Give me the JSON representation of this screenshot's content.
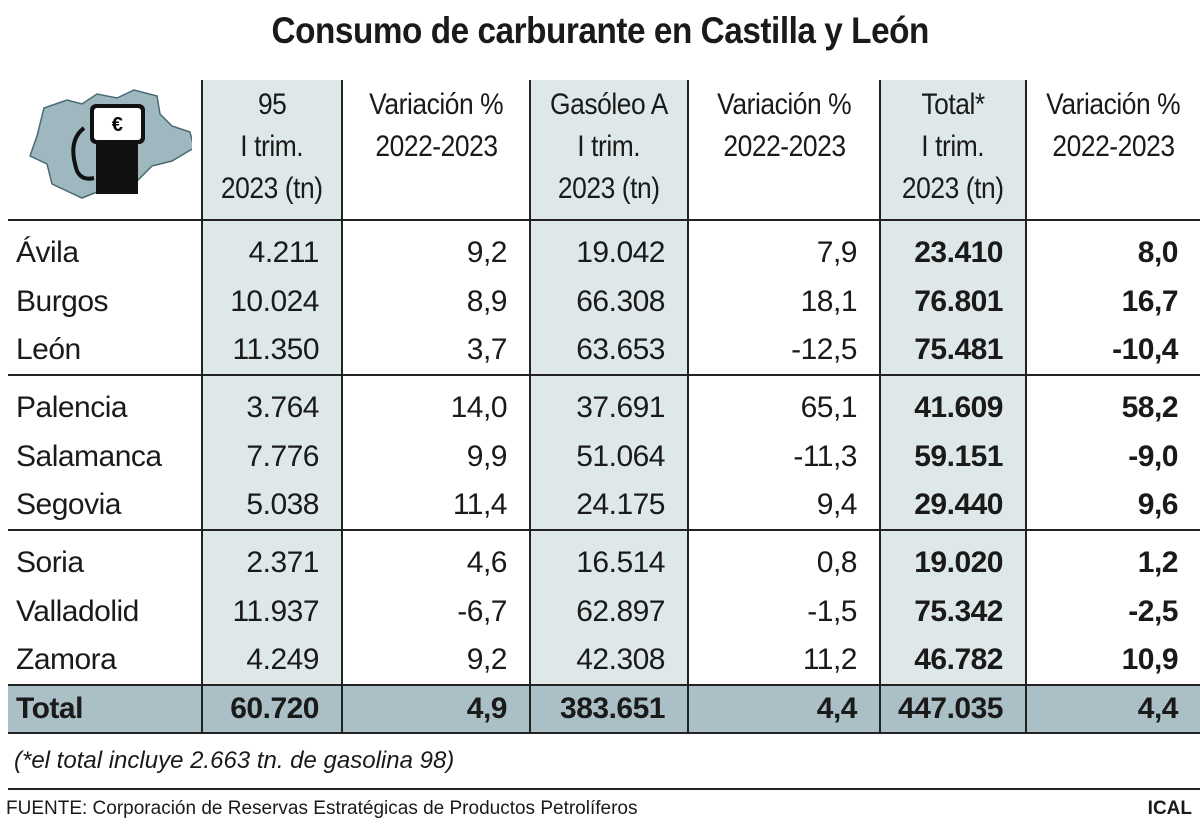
{
  "title": "Consumo de carburante en Castilla y León",
  "colors": {
    "shade": "#dfe8e8",
    "total_row": "#aabfc6",
    "map": "#9fb8bf"
  },
  "chart_data": {
    "type": "table",
    "title": "Consumo de carburante en Castilla y León",
    "columns": [
      {
        "l1": "95",
        "l2": "I trim.",
        "l3": "2023 (tn)"
      },
      {
        "l1": "Variación %",
        "l2": "2022-2023",
        "l3": ""
      },
      {
        "l1": "Gasóleo A",
        "l2": "I trim.",
        "l3": "2023 (tn)"
      },
      {
        "l1": "Variación %",
        "l2": "2022-2023",
        "l3": ""
      },
      {
        "l1": "Total*",
        "l2": "I trim.",
        "l3": "2023 (tn)"
      },
      {
        "l1": "Variación %",
        "l2": "2022-2023",
        "l3": ""
      }
    ],
    "rows": [
      {
        "name": "Ávila",
        "v": [
          "4.211",
          "9,2",
          "19.042",
          "7,9",
          "23.410",
          "8,0"
        ]
      },
      {
        "name": "Burgos",
        "v": [
          "10.024",
          "8,9",
          "66.308",
          "18,1",
          "76.801",
          "16,7"
        ]
      },
      {
        "name": "León",
        "v": [
          "11.350",
          "3,7",
          "63.653",
          "-12,5",
          "75.481",
          "-10,4"
        ]
      },
      {
        "name": "Palencia",
        "v": [
          "3.764",
          "14,0",
          "37.691",
          "65,1",
          "41.609",
          "58,2"
        ]
      },
      {
        "name": "Salamanca",
        "v": [
          "7.776",
          "9,9",
          "51.064",
          "-11,3",
          "59.151",
          "-9,0"
        ]
      },
      {
        "name": "Segovia",
        "v": [
          "5.038",
          "11,4",
          "24.175",
          "9,4",
          "29.440",
          "9,6"
        ]
      },
      {
        "name": "Soria",
        "v": [
          "2.371",
          "4,6",
          "16.514",
          "0,8",
          "19.020",
          "1,2"
        ]
      },
      {
        "name": "Valladolid",
        "v": [
          "11.937",
          "-6,7",
          "62.897",
          "-1,5",
          "75.342",
          "-2,5"
        ]
      },
      {
        "name": "Zamora",
        "v": [
          "4.249",
          "9,2",
          "42.308",
          "11,2",
          "46.782",
          "10,9"
        ]
      }
    ],
    "total": {
      "name": "Total",
      "v": [
        "60.720",
        "4,9",
        "383.651",
        "4,4",
        "447.035",
        "4,4"
      ]
    }
  },
  "logo": {
    "symbol": "€"
  },
  "note": "(*el total incluye 2.663 tn. de gasolina 98)",
  "source": "FUENTE: Corporación de Reservas Estratégicas de Productos Petrolíferos",
  "agency": "ICAL"
}
